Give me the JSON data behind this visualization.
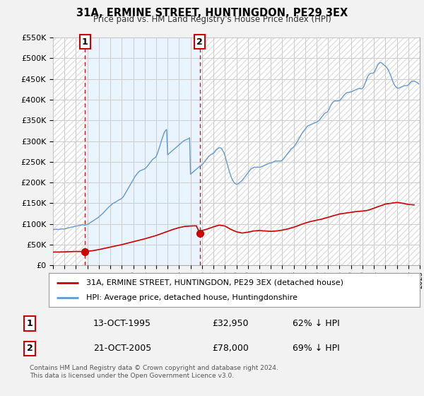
{
  "title": "31A, ERMINE STREET, HUNTINGDON, PE29 3EX",
  "subtitle": "Price paid vs. HM Land Registry's House Price Index (HPI)",
  "transaction1_date": "13-OCT-1995",
  "transaction1_price": 32950,
  "transaction1_label": "62% ↓ HPI",
  "transaction1_x": 1995.79,
  "transaction2_date": "21-OCT-2005",
  "transaction2_price": 78000,
  "transaction2_label": "69% ↓ HPI",
  "transaction2_x": 2005.8,
  "legend_red": "31A, ERMINE STREET, HUNTINGDON, PE29 3EX (detached house)",
  "legend_blue": "HPI: Average price, detached house, Huntingdonshire",
  "footer": "Contains HM Land Registry data © Crown copyright and database right 2024.\nThis data is licensed under the Open Government Licence v3.0.",
  "ylim": [
    0,
    550000
  ],
  "yticks": [
    0,
    50000,
    100000,
    150000,
    200000,
    250000,
    300000,
    350000,
    400000,
    450000,
    500000,
    550000
  ],
  "bg_color": "#f2f2f2",
  "plot_bg_color": "#ffffff",
  "hatch_color": "#e0e0e0",
  "shade_color": "#ddeeff",
  "red_color": "#cc0000",
  "blue_color": "#6699cc",
  "grid_color": "#cccccc",
  "hpi_years": [
    1993.0,
    1993.083,
    1993.167,
    1993.25,
    1993.333,
    1993.417,
    1993.5,
    1993.583,
    1993.667,
    1993.75,
    1993.833,
    1993.917,
    1994.0,
    1994.083,
    1994.167,
    1994.25,
    1994.333,
    1994.417,
    1994.5,
    1994.583,
    1994.667,
    1994.75,
    1994.833,
    1994.917,
    1995.0,
    1995.083,
    1995.167,
    1995.25,
    1995.333,
    1995.417,
    1995.5,
    1995.583,
    1995.667,
    1995.75,
    1995.833,
    1995.917,
    1996.0,
    1996.083,
    1996.167,
    1996.25,
    1996.333,
    1996.417,
    1996.5,
    1996.583,
    1996.667,
    1996.75,
    1996.833,
    1996.917,
    1997.0,
    1997.083,
    1997.167,
    1997.25,
    1997.333,
    1997.417,
    1997.5,
    1997.583,
    1997.667,
    1997.75,
    1997.833,
    1997.917,
    1998.0,
    1998.083,
    1998.167,
    1998.25,
    1998.333,
    1998.417,
    1998.5,
    1998.583,
    1998.667,
    1998.75,
    1998.833,
    1998.917,
    1999.0,
    1999.083,
    1999.167,
    1999.25,
    1999.333,
    1999.417,
    1999.5,
    1999.583,
    1999.667,
    1999.75,
    1999.833,
    1999.917,
    2000.0,
    2000.083,
    2000.167,
    2000.25,
    2000.333,
    2000.417,
    2000.5,
    2000.583,
    2000.667,
    2000.75,
    2000.833,
    2000.917,
    2001.0,
    2001.083,
    2001.167,
    2001.25,
    2001.333,
    2001.417,
    2001.5,
    2001.583,
    2001.667,
    2001.75,
    2001.833,
    2001.917,
    2002.0,
    2002.083,
    2002.167,
    2002.25,
    2002.333,
    2002.417,
    2002.5,
    2002.583,
    2002.667,
    2002.75,
    2002.833,
    2002.917,
    2003.0,
    2003.083,
    2003.167,
    2003.25,
    2003.333,
    2003.417,
    2003.5,
    2003.583,
    2003.667,
    2003.75,
    2003.833,
    2003.917,
    2004.0,
    2004.083,
    2004.167,
    2004.25,
    2004.333,
    2004.417,
    2004.5,
    2004.583,
    2004.667,
    2004.75,
    2004.833,
    2004.917,
    2005.0,
    2005.083,
    2005.167,
    2005.25,
    2005.333,
    2005.417,
    2005.5,
    2005.583,
    2005.667,
    2005.75,
    2005.833,
    2005.917,
    2006.0,
    2006.083,
    2006.167,
    2006.25,
    2006.333,
    2006.417,
    2006.5,
    2006.583,
    2006.667,
    2006.75,
    2006.833,
    2006.917,
    2007.0,
    2007.083,
    2007.167,
    2007.25,
    2007.333,
    2007.417,
    2007.5,
    2007.583,
    2007.667,
    2007.75,
    2007.833,
    2007.917,
    2008.0,
    2008.083,
    2008.167,
    2008.25,
    2008.333,
    2008.417,
    2008.5,
    2008.583,
    2008.667,
    2008.75,
    2008.833,
    2008.917,
    2009.0,
    2009.083,
    2009.167,
    2009.25,
    2009.333,
    2009.417,
    2009.5,
    2009.583,
    2009.667,
    2009.75,
    2009.833,
    2009.917,
    2010.0,
    2010.083,
    2010.167,
    2010.25,
    2010.333,
    2010.417,
    2010.5,
    2010.583,
    2010.667,
    2010.75,
    2010.833,
    2010.917,
    2011.0,
    2011.083,
    2011.167,
    2011.25,
    2011.333,
    2011.417,
    2011.5,
    2011.583,
    2011.667,
    2011.75,
    2011.833,
    2011.917,
    2012.0,
    2012.083,
    2012.167,
    2012.25,
    2012.333,
    2012.417,
    2012.5,
    2012.583,
    2012.667,
    2012.75,
    2012.833,
    2012.917,
    2013.0,
    2013.083,
    2013.167,
    2013.25,
    2013.333,
    2013.417,
    2013.5,
    2013.583,
    2013.667,
    2013.75,
    2013.833,
    2013.917,
    2014.0,
    2014.083,
    2014.167,
    2014.25,
    2014.333,
    2014.417,
    2014.5,
    2014.583,
    2014.667,
    2014.75,
    2014.833,
    2014.917,
    2015.0,
    2015.083,
    2015.167,
    2015.25,
    2015.333,
    2015.417,
    2015.5,
    2015.583,
    2015.667,
    2015.75,
    2015.833,
    2015.917,
    2016.0,
    2016.083,
    2016.167,
    2016.25,
    2016.333,
    2016.417,
    2016.5,
    2016.583,
    2016.667,
    2016.75,
    2016.833,
    2016.917,
    2017.0,
    2017.083,
    2017.167,
    2017.25,
    2017.333,
    2017.417,
    2017.5,
    2017.583,
    2017.667,
    2017.75,
    2017.833,
    2017.917,
    2018.0,
    2018.083,
    2018.167,
    2018.25,
    2018.333,
    2018.417,
    2018.5,
    2018.583,
    2018.667,
    2018.75,
    2018.833,
    2018.917,
    2019.0,
    2019.083,
    2019.167,
    2019.25,
    2019.333,
    2019.417,
    2019.5,
    2019.583,
    2019.667,
    2019.75,
    2019.833,
    2019.917,
    2020.0,
    2020.083,
    2020.167,
    2020.25,
    2020.333,
    2020.417,
    2020.5,
    2020.583,
    2020.667,
    2020.75,
    2020.833,
    2020.917,
    2021.0,
    2021.083,
    2021.167,
    2021.25,
    2021.333,
    2021.417,
    2021.5,
    2021.583,
    2021.667,
    2021.75,
    2021.833,
    2021.917,
    2022.0,
    2022.083,
    2022.167,
    2022.25,
    2022.333,
    2022.417,
    2022.5,
    2022.583,
    2022.667,
    2022.75,
    2022.833,
    2022.917,
    2023.0,
    2023.083,
    2023.167,
    2023.25,
    2023.333,
    2023.417,
    2023.5,
    2023.583,
    2023.667,
    2023.75,
    2023.833,
    2023.917,
    2024.0,
    2024.083,
    2024.167,
    2024.25,
    2024.333,
    2024.417,
    2024.5,
    2024.583,
    2024.667,
    2024.75,
    2024.833,
    2024.917
  ],
  "hpi_values": [
    86000,
    86500,
    86800,
    87200,
    87000,
    86500,
    86800,
    87200,
    87500,
    87800,
    88000,
    87500,
    88000,
    88500,
    89000,
    89800,
    90500,
    91000,
    91500,
    92000,
    92500,
    93000,
    93500,
    94000,
    94500,
    95000,
    95500,
    96000,
    96500,
    97000,
    97500,
    98000,
    97500,
    97000,
    97500,
    98000,
    99000,
    100000,
    101500,
    103000,
    104500,
    106000,
    107500,
    109000,
    110500,
    112000,
    113500,
    115000,
    117000,
    119000,
    121000,
    123000,
    125000,
    127500,
    130000,
    132500,
    135000,
    137500,
    140000,
    142000,
    144000,
    146000,
    148000,
    150000,
    151000,
    152000,
    153500,
    155000,
    156500,
    158000,
    159000,
    160000,
    162000,
    164000,
    167000,
    171000,
    175000,
    179000,
    183000,
    187000,
    191000,
    195000,
    199000,
    203000,
    207000,
    211000,
    215000,
    218000,
    221000,
    224000,
    226000,
    228000,
    229000,
    230000,
    231000,
    232000,
    233000,
    235000,
    237000,
    240000,
    243000,
    246000,
    249000,
    252000,
    255000,
    257000,
    259000,
    260000,
    263000,
    268000,
    275000,
    282000,
    289000,
    297000,
    304000,
    311000,
    318000,
    323000,
    326000,
    328000,
    267000,
    269000,
    271000,
    273000,
    275000,
    277000,
    279000,
    281000,
    283000,
    285000,
    287000,
    289000,
    291000,
    293000,
    295000,
    297000,
    299000,
    301000,
    302000,
    303000,
    304000,
    305000,
    306000,
    308000,
    220000,
    222000,
    224000,
    226000,
    228000,
    230000,
    232000,
    234000,
    236000,
    238000,
    240000,
    241000,
    243000,
    245000,
    248000,
    251000,
    254000,
    257000,
    260000,
    263000,
    265000,
    267000,
    268000,
    269000,
    271000,
    273000,
    276000,
    279000,
    281000,
    283000,
    284000,
    284000,
    283000,
    280000,
    276000,
    272000,
    265000,
    257000,
    248000,
    240000,
    232000,
    224000,
    217000,
    211000,
    206000,
    202000,
    199000,
    197000,
    196000,
    196000,
    197000,
    199000,
    201000,
    203000,
    205000,
    208000,
    211000,
    214000,
    217000,
    220000,
    223000,
    226000,
    229000,
    232000,
    234000,
    235000,
    236000,
    237000,
    237000,
    237000,
    237000,
    237000,
    237000,
    237000,
    238000,
    239000,
    240000,
    241000,
    242000,
    243000,
    244000,
    245000,
    246000,
    247000,
    247000,
    248000,
    249000,
    250000,
    251000,
    252000,
    252000,
    252000,
    252000,
    252000,
    252000,
    252000,
    254000,
    256000,
    259000,
    262000,
    265000,
    268000,
    271000,
    274000,
    277000,
    280000,
    282000,
    284000,
    286000,
    289000,
    292000,
    296000,
    300000,
    304000,
    308000,
    312000,
    316000,
    320000,
    323000,
    326000,
    329000,
    332000,
    335000,
    337000,
    338000,
    339000,
    340000,
    341000,
    342000,
    343000,
    344000,
    345000,
    346000,
    347000,
    349000,
    351000,
    354000,
    357000,
    360000,
    363000,
    366000,
    368000,
    369000,
    370000,
    373000,
    377000,
    382000,
    387000,
    391000,
    394000,
    396000,
    397000,
    397000,
    397000,
    397000,
    397000,
    398000,
    400000,
    403000,
    406000,
    409000,
    412000,
    414000,
    416000,
    417000,
    418000,
    418000,
    418000,
    419000,
    420000,
    421000,
    422000,
    423000,
    424000,
    425000,
    426000,
    427000,
    427000,
    427000,
    426000,
    428000,
    430000,
    435000,
    441000,
    447000,
    453000,
    458000,
    461000,
    463000,
    464000,
    464000,
    464000,
    466000,
    469000,
    474000,
    479000,
    484000,
    487000,
    489000,
    490000,
    489000,
    487000,
    485000,
    483000,
    481000,
    479000,
    476000,
    472000,
    467000,
    462000,
    456000,
    449000,
    443000,
    438000,
    434000,
    431000,
    429000,
    428000,
    428000,
    429000,
    430000,
    431000,
    432000,
    433000,
    434000,
    434000,
    434000,
    434000,
    436000,
    438000,
    441000,
    443000,
    445000,
    445000,
    445000,
    444000,
    443000,
    442000,
    440000,
    438000
  ],
  "red_years": [
    1993.0,
    1993.5,
    1994.0,
    1994.5,
    1995.0,
    1995.5,
    1995.79,
    1996.0,
    1996.5,
    1997.0,
    1997.5,
    1998.0,
    1998.5,
    1999.0,
    1999.5,
    2000.0,
    2000.5,
    2001.0,
    2001.5,
    2002.0,
    2002.5,
    2003.0,
    2003.5,
    2004.0,
    2004.5,
    2005.0,
    2005.5,
    2005.8,
    2006.0,
    2006.5,
    2007.0,
    2007.5,
    2008.0,
    2008.5,
    2009.0,
    2009.5,
    2010.0,
    2010.5,
    2011.0,
    2011.5,
    2012.0,
    2012.5,
    2013.0,
    2013.5,
    2014.0,
    2014.5,
    2015.0,
    2015.5,
    2016.0,
    2016.5,
    2017.0,
    2017.5,
    2018.0,
    2018.5,
    2019.0,
    2019.5,
    2020.0,
    2020.5,
    2021.0,
    2021.5,
    2022.0,
    2022.5,
    2023.0,
    2023.5,
    2024.0,
    2024.5
  ],
  "red_values": [
    32000,
    32200,
    32500,
    33000,
    33500,
    33200,
    32950,
    34000,
    35500,
    38000,
    41000,
    44000,
    47000,
    50000,
    53500,
    57000,
    60500,
    64000,
    68000,
    72000,
    77000,
    82000,
    87000,
    91000,
    94000,
    95000,
    95500,
    78000,
    84000,
    88000,
    93000,
    97000,
    95000,
    87000,
    81000,
    78000,
    80000,
    83000,
    84000,
    83000,
    82000,
    83000,
    85000,
    88000,
    92000,
    97000,
    102000,
    106000,
    109000,
    112000,
    116000,
    120000,
    124000,
    126000,
    128000,
    130000,
    131000,
    133000,
    138000,
    143000,
    148000,
    150000,
    152000,
    150000,
    147000,
    146000
  ]
}
